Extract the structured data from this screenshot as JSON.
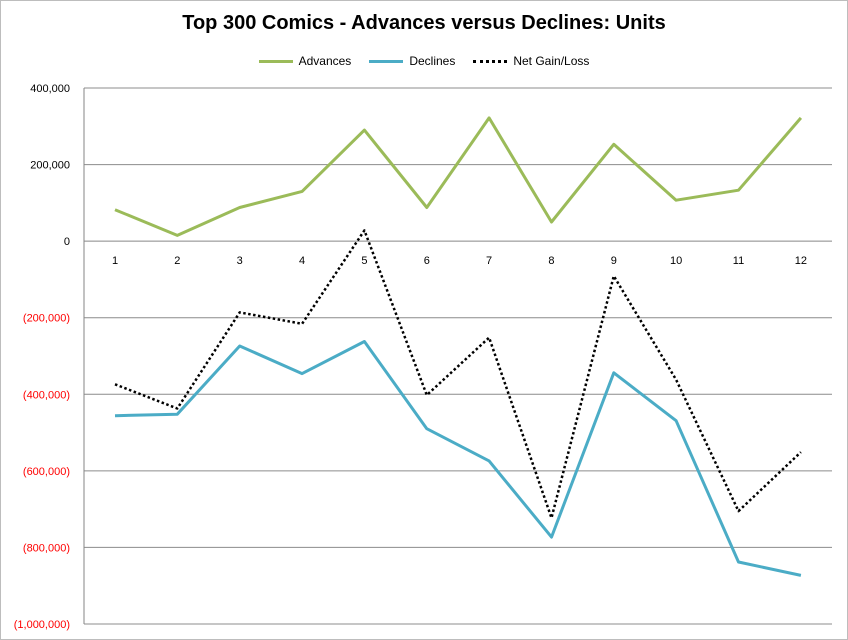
{
  "chart_data": {
    "type": "line",
    "title": "Top 300 Comics - Advances versus Declines: Units",
    "xlabel": "",
    "ylabel": "",
    "categories": [
      "1",
      "2",
      "3",
      "4",
      "5",
      "6",
      "7",
      "8",
      "9",
      "10",
      "11",
      "12"
    ],
    "ylim": [
      -1000000,
      400000
    ],
    "yticks": [
      400000,
      200000,
      0,
      -200000,
      -400000,
      -600000,
      -800000,
      -1000000
    ],
    "ytick_labels": [
      "400,000",
      "200,000",
      "0",
      "(200,000)",
      "(400,000)",
      "(600,000)",
      "(800,000)",
      "(1,000,000)"
    ],
    "negative_label_color": "#ff0000",
    "positive_label_color": "#000000",
    "grid": true,
    "legend_position": "top",
    "series": [
      {
        "name": "Advances",
        "color": "#9bbb59",
        "style": "solid",
        "values": [
          82000,
          15000,
          88000,
          130000,
          290000,
          88000,
          322000,
          50000,
          253000,
          107000,
          133000,
          322000
        ]
      },
      {
        "name": "Declines",
        "color": "#4bacc6",
        "style": "solid",
        "values": [
          -456000,
          -452000,
          -274000,
          -346000,
          -262000,
          -490000,
          -574000,
          -773000,
          -344000,
          -469000,
          -838000,
          -873000
        ]
      },
      {
        "name": "Net Gain/Loss",
        "color": "#000000",
        "style": "dotted",
        "values": [
          -374000,
          -437000,
          -186000,
          -216000,
          28000,
          -402000,
          -252000,
          -723000,
          -91000,
          -362000,
          -705000,
          -551000
        ]
      }
    ]
  }
}
